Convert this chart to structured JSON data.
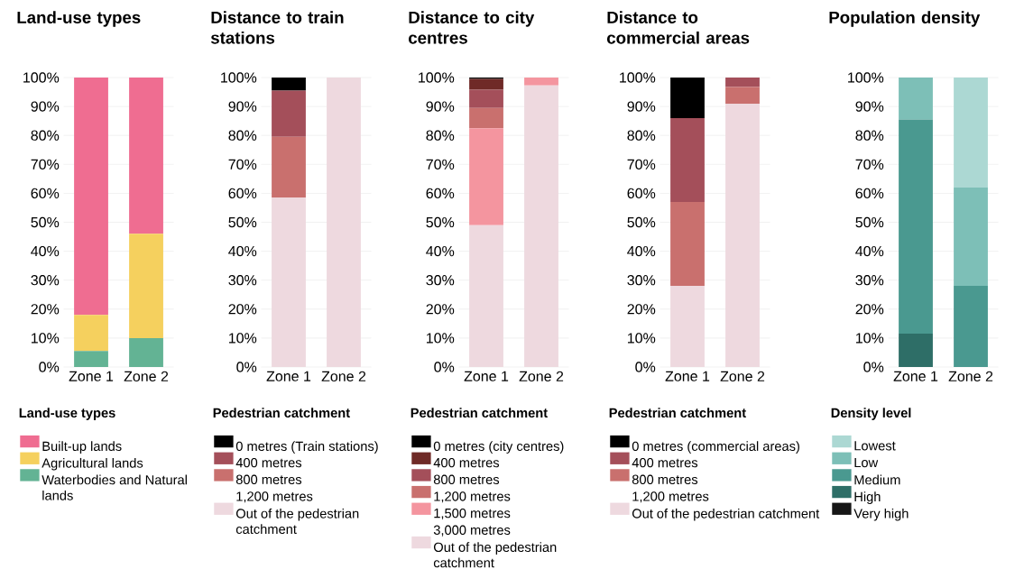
{
  "chart_data": [
    {
      "type": "bar",
      "title": "Land-use types",
      "legend_title": "Land-use types",
      "categories": [
        "Zone 1",
        "Zone 2"
      ],
      "stacked": true,
      "ylim": [
        0,
        100
      ],
      "yticks": [
        {
          "value": 0,
          "label": "0%"
        },
        {
          "value": 10,
          "label": "10%"
        },
        {
          "value": 20,
          "label": "20%"
        },
        {
          "value": 30,
          "label": "30%"
        },
        {
          "value": 40,
          "label": "40%"
        },
        {
          "value": 50,
          "label": "50%"
        },
        {
          "value": 60,
          "label": "60%"
        },
        {
          "value": 70,
          "label": "70%"
        },
        {
          "value": 80,
          "label": "80%"
        },
        {
          "value": 90,
          "label": "90%"
        },
        {
          "value": 100,
          "label": "100%"
        }
      ],
      "grid": "y",
      "legend": "bottom",
      "series": [
        {
          "name": "Waterbodies and Natural lands",
          "color": "#63b394",
          "values": [
            5.5,
            10
          ]
        },
        {
          "name": "Agricultural lands",
          "color": "#f5d05e",
          "values": [
            12.5,
            36
          ]
        },
        {
          "name": "Built-up lands",
          "color": "#ef6d91",
          "values": [
            82,
            54
          ]
        }
      ]
    },
    {
      "type": "bar",
      "title": "Distance to train stations",
      "legend_title": "Pedestrian catchment",
      "categories": [
        "Zone 1",
        "Zone 2"
      ],
      "stacked": true,
      "ylim": [
        0,
        100
      ],
      "yticks": [
        {
          "value": 0,
          "label": "0%"
        },
        {
          "value": 10,
          "label": "10%"
        },
        {
          "value": 20,
          "label": "20%"
        },
        {
          "value": 30,
          "label": "30%"
        },
        {
          "value": 40,
          "label": "40%"
        },
        {
          "value": 50,
          "label": "50%"
        },
        {
          "value": 60,
          "label": "60%"
        },
        {
          "value": 70,
          "label": "70%"
        },
        {
          "value": 80,
          "label": "80%"
        },
        {
          "value": 90,
          "label": "90%"
        },
        {
          "value": 100,
          "label": "100%"
        }
      ],
      "grid": "y",
      "legend": "bottom",
      "annotations": [
        "1,200 metres"
      ],
      "series": [
        {
          "name": "Out of the pedestrian catchment",
          "color": "#eed9df",
          "values": [
            58.5,
            100
          ]
        },
        {
          "name": "800 metres",
          "color": "#c9706e",
          "values": [
            21,
            0
          ]
        },
        {
          "name": "400 metres",
          "color": "#a44f5a",
          "values": [
            16,
            0
          ]
        },
        {
          "name": "0 metres (Train stations)",
          "color": "#000000",
          "values": [
            4.5,
            0
          ]
        }
      ]
    },
    {
      "type": "bar",
      "title": "Distance to city centres",
      "legend_title": "Pedestrian catchment",
      "categories": [
        "Zone 1",
        "Zone 2"
      ],
      "stacked": true,
      "ylim": [
        0,
        100
      ],
      "yticks": [
        {
          "value": 0,
          "label": "0%"
        },
        {
          "value": 10,
          "label": "10%"
        },
        {
          "value": 20,
          "label": "20%"
        },
        {
          "value": 30,
          "label": "30%"
        },
        {
          "value": 40,
          "label": "40%"
        },
        {
          "value": 50,
          "label": "50%"
        },
        {
          "value": 60,
          "label": "60%"
        },
        {
          "value": 70,
          "label": "70%"
        },
        {
          "value": 80,
          "label": "80%"
        },
        {
          "value": 90,
          "label": "90%"
        },
        {
          "value": 100,
          "label": "100%"
        }
      ],
      "grid": "y",
      "legend": "bottom",
      "annotations": [
        "3,000 metres"
      ],
      "series": [
        {
          "name": "Out of the pedestrian catchment",
          "color": "#eed9df",
          "values": [
            49,
            97.3
          ]
        },
        {
          "name": "1,500 metres",
          "color": "#f4959f",
          "values": [
            33.5,
            2.7
          ]
        },
        {
          "name": "1,200 metres",
          "color": "#c9706e",
          "values": [
            7,
            0
          ]
        },
        {
          "name": "800 metres",
          "color": "#a44f5a",
          "values": [
            6.3,
            0
          ]
        },
        {
          "name": "400 metres",
          "color": "#6f2a27",
          "values": [
            3.7,
            0
          ]
        },
        {
          "name": "0 metres (city centres)",
          "color": "#000000",
          "values": [
            0.5,
            0
          ]
        }
      ]
    },
    {
      "type": "bar",
      "title": "Distance to commercial areas",
      "legend_title": "Pedestrian catchment",
      "categories": [
        "Zone 1",
        "Zone 2"
      ],
      "stacked": true,
      "ylim": [
        0,
        100
      ],
      "yticks": [
        {
          "value": 0,
          "label": "0%"
        },
        {
          "value": 10,
          "label": "10%"
        },
        {
          "value": 20,
          "label": "20%"
        },
        {
          "value": 30,
          "label": "30%"
        },
        {
          "value": 40,
          "label": "40%"
        },
        {
          "value": 50,
          "label": "50%"
        },
        {
          "value": 60,
          "label": "60%"
        },
        {
          "value": 70,
          "label": "70%"
        },
        {
          "value": 80,
          "label": "80%"
        },
        {
          "value": 90,
          "label": "90%"
        },
        {
          "value": 100,
          "label": "100%"
        }
      ],
      "grid": "y",
      "legend": "bottom",
      "annotations": [
        "1,200 metres"
      ],
      "series": [
        {
          "name": "Out of the pedestrian catchment",
          "color": "#eed9df",
          "values": [
            28,
            91
          ]
        },
        {
          "name": "800 metres",
          "color": "#c9706e",
          "values": [
            29,
            5.7
          ]
        },
        {
          "name": "400 metres",
          "color": "#a44f5a",
          "values": [
            29,
            3.3
          ]
        },
        {
          "name": "0 metres (commercial areas)",
          "color": "#000000",
          "values": [
            14,
            0
          ]
        }
      ]
    },
    {
      "type": "bar",
      "title": "Population density",
      "legend_title": "Density level",
      "categories": [
        "Zone 1",
        "Zone 2"
      ],
      "stacked": true,
      "ylim": [
        0,
        100
      ],
      "yticks": [
        {
          "value": 0,
          "label": "0%"
        },
        {
          "value": 10,
          "label": "10%"
        },
        {
          "value": 20,
          "label": "20%"
        },
        {
          "value": 30,
          "label": "30%"
        },
        {
          "value": 40,
          "label": "40%"
        },
        {
          "value": 50,
          "label": "50%"
        },
        {
          "value": 60,
          "label": "60%"
        },
        {
          "value": 70,
          "label": "70%"
        },
        {
          "value": 80,
          "label": "80%"
        },
        {
          "value": 90,
          "label": "90%"
        },
        {
          "value": 100,
          "label": "100%"
        }
      ],
      "grid": "y",
      "legend": "bottom",
      "series": [
        {
          "name": "Very high",
          "color": "#161616",
          "values": [
            0,
            0
          ]
        },
        {
          "name": "High",
          "color": "#2e6e67",
          "values": [
            11.5,
            0
          ]
        },
        {
          "name": "Medium",
          "color": "#4a9990",
          "values": [
            74,
            28
          ]
        },
        {
          "name": "Low",
          "color": "#7dbfb7",
          "values": [
            14.5,
            34
          ]
        },
        {
          "name": "Lowest",
          "color": "#acd8d3",
          "values": [
            0,
            38
          ]
        }
      ]
    }
  ]
}
